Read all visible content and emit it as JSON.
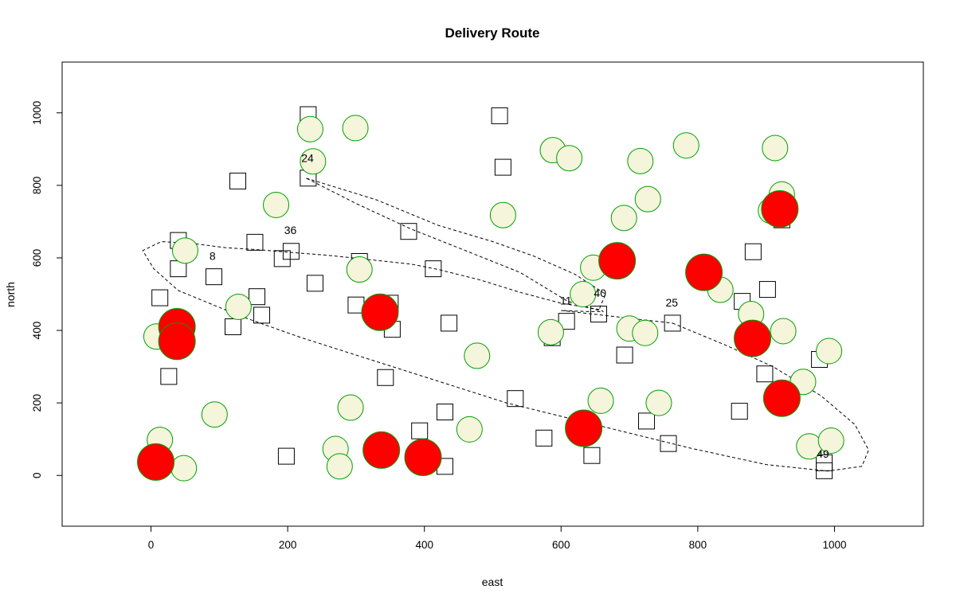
{
  "chart_data": {
    "type": "scatter",
    "title": "Delivery Route",
    "xlabel": "east",
    "ylabel": "north",
    "xlim": [
      -130,
      1130
    ],
    "ylim": [
      -140,
      1140
    ],
    "xticks": [
      0,
      200,
      400,
      600,
      800,
      1000
    ],
    "yticks": [
      0,
      200,
      400,
      600,
      800,
      1000
    ],
    "grid": false,
    "colors": {
      "square_stroke": "#000000",
      "circle_fill": "#f5f5dc",
      "circle_stroke": "#00a000",
      "highlight_fill": "#ff0000",
      "route_stroke": "#000000"
    },
    "squares": [
      [
        230,
        995
      ],
      [
        510,
        992
      ],
      [
        515,
        850
      ],
      [
        127,
        812
      ],
      [
        230,
        820
      ],
      [
        377,
        673
      ],
      [
        40,
        648
      ],
      [
        152,
        643
      ],
      [
        205,
        618
      ],
      [
        192,
        598
      ],
      [
        305,
        590
      ],
      [
        413,
        570
      ],
      [
        40,
        570
      ],
      [
        92,
        548
      ],
      [
        240,
        530
      ],
      [
        13,
        490
      ],
      [
        155,
        493
      ],
      [
        300,
        470
      ],
      [
        350,
        475
      ],
      [
        120,
        410
      ],
      [
        162,
        442
      ],
      [
        353,
        403
      ],
      [
        436,
        420
      ],
      [
        608,
        425
      ],
      [
        655,
        445
      ],
      [
        763,
        420
      ],
      [
        587,
        380
      ],
      [
        693,
        332
      ],
      [
        26,
        273
      ],
      [
        343,
        270
      ],
      [
        533,
        212
      ],
      [
        725,
        150
      ],
      [
        861,
        177
      ],
      [
        898,
        280
      ],
      [
        978,
        320
      ],
      [
        881,
        617
      ],
      [
        902,
        513
      ],
      [
        865,
        480
      ],
      [
        393,
        123
      ],
      [
        430,
        175
      ],
      [
        198,
        53
      ],
      [
        430,
        25
      ],
      [
        575,
        103
      ],
      [
        645,
        55
      ],
      [
        757,
        88
      ],
      [
        985,
        13
      ],
      [
        985,
        35
      ],
      [
        923,
        705
      ]
    ],
    "circles": [
      [
        233,
        955
      ],
      [
        299,
        958
      ],
      [
        237,
        866
      ],
      [
        183,
        746
      ],
      [
        50,
        620
      ],
      [
        305,
        568
      ],
      [
        128,
        465
      ],
      [
        8,
        383
      ],
      [
        40,
        410
      ],
      [
        93,
        168
      ],
      [
        13,
        98
      ],
      [
        48,
        20
      ],
      [
        270,
        73
      ],
      [
        276,
        25
      ],
      [
        292,
        187
      ],
      [
        477,
        330
      ],
      [
        466,
        127
      ],
      [
        588,
        897
      ],
      [
        612,
        875
      ],
      [
        515,
        718
      ],
      [
        632,
        500
      ],
      [
        647,
        573
      ],
      [
        692,
        710
      ],
      [
        716,
        867
      ],
      [
        727,
        762
      ],
      [
        783,
        910
      ],
      [
        833,
        512
      ],
      [
        878,
        445
      ],
      [
        700,
        405
      ],
      [
        723,
        393
      ],
      [
        585,
        395
      ],
      [
        658,
        206
      ],
      [
        743,
        200
      ],
      [
        913,
        903
      ],
      [
        923,
        775
      ],
      [
        907,
        730
      ],
      [
        925,
        398
      ],
      [
        954,
        258
      ],
      [
        992,
        343
      ],
      [
        963,
        80
      ],
      [
        995,
        96
      ]
    ],
    "highlights": [
      [
        38,
        410
      ],
      [
        38,
        370
      ],
      [
        7,
        37
      ],
      [
        335,
        450
      ],
      [
        337,
        70
      ],
      [
        398,
        50
      ],
      [
        633,
        130
      ],
      [
        682,
        592
      ],
      [
        809,
        560
      ],
      [
        880,
        378
      ],
      [
        923,
        213
      ],
      [
        920,
        735
      ]
    ],
    "labels": [
      {
        "text": "24",
        "x": 229,
        "y": 864
      },
      {
        "text": "36",
        "x": 204,
        "y": 666
      },
      {
        "text": "8",
        "x": 90,
        "y": 594
      },
      {
        "text": "11",
        "x": 607,
        "y": 472
      },
      {
        "text": "40",
        "x": 657,
        "y": 492
      },
      {
        "text": "25",
        "x": 762,
        "y": 466
      },
      {
        "text": "49",
        "x": 983,
        "y": 49
      }
    ],
    "route_loops": [
      [
        [
          227,
          820
        ],
        [
          330,
          760
        ],
        [
          420,
          690
        ],
        [
          500,
          645
        ],
        [
          560,
          605
        ],
        [
          620,
          555
        ],
        [
          665,
          500
        ],
        [
          655,
          455
        ],
        [
          610,
          480
        ],
        [
          540,
          560
        ],
        [
          460,
          620
        ],
        [
          380,
          680
        ],
        [
          300,
          750
        ]
      ],
      [
        [
          763,
          420
        ],
        [
          840,
          360
        ],
        [
          910,
          300
        ],
        [
          980,
          220
        ],
        [
          1030,
          140
        ],
        [
          1050,
          70
        ],
        [
          1040,
          25
        ],
        [
          990,
          12
        ],
        [
          900,
          30
        ],
        [
          790,
          75
        ],
        [
          650,
          140
        ],
        [
          520,
          200
        ],
        [
          420,
          260
        ],
        [
          320,
          320
        ],
        [
          220,
          380
        ],
        [
          130,
          440
        ],
        [
          40,
          510
        ],
        [
          4,
          570
        ],
        [
          -12,
          620
        ],
        [
          15,
          645
        ],
        [
          60,
          640
        ],
        [
          110,
          628
        ],
        [
          160,
          622
        ],
        [
          205,
          615
        ],
        [
          260,
          607
        ],
        [
          320,
          595
        ],
        [
          380,
          583
        ],
        [
          420,
          568
        ],
        [
          480,
          540
        ],
        [
          540,
          505
        ],
        [
          600,
          475
        ],
        [
          655,
          458
        ],
        [
          662,
          452
        ],
        [
          640,
          452
        ],
        [
          600,
          455
        ]
      ]
    ]
  }
}
